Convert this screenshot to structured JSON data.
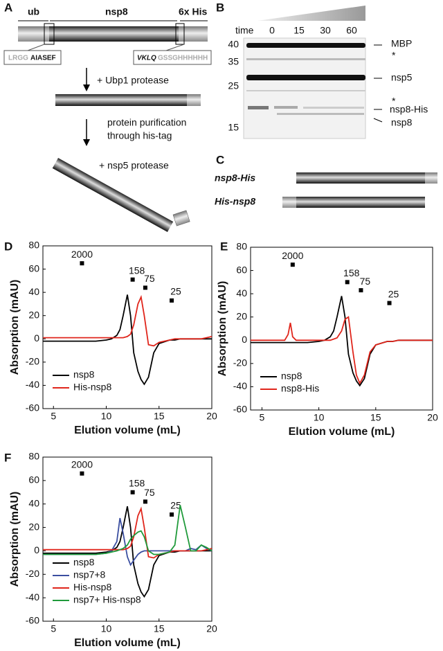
{
  "panel_labels": [
    "A",
    "B",
    "C",
    "D",
    "E",
    "F"
  ],
  "panel_a": {
    "ub": "ub",
    "nsp8": "nsp8",
    "his": "6x His",
    "left_seq": [
      "LRGG",
      "AIASEF"
    ],
    "right_seq": [
      "VKLQ",
      "GSSGHHHHHH"
    ],
    "step1": "+ Ubp1 protease",
    "step2": [
      "protein purification",
      "through his-tag"
    ],
    "step3": "+ nsp5 protease"
  },
  "panel_b": {
    "time_label": "time",
    "times": [
      0,
      15,
      30,
      60
    ],
    "mw": [
      40,
      35,
      25,
      15
    ],
    "bands": [
      "MBP",
      "*",
      "nsp5",
      "*",
      "nsp8-His",
      "nsp8"
    ]
  },
  "panel_c": {
    "constructs": [
      "nsp8-His",
      "His-nsp8"
    ]
  },
  "chart_data": [
    {
      "type": "line",
      "x_label": "Elution volume (mL)",
      "y_label": "Absorption (mAU)",
      "xlim": [
        4,
        20
      ],
      "ylim": [
        -60,
        80
      ],
      "xticks": [
        5,
        10,
        15,
        20
      ],
      "yticks": [
        -60,
        -40,
        -20,
        0,
        20,
        40,
        60,
        80
      ],
      "legend": "lower left",
      "x": [
        4,
        5,
        6,
        7,
        7.3,
        7.5,
        7.7,
        8,
        9,
        10,
        10.5,
        11,
        11.3,
        11.6,
        12,
        12.3,
        12.6,
        13,
        13.3,
        13.6,
        14,
        14.5,
        15,
        16,
        16.5,
        17,
        17.5,
        18,
        18.5,
        19,
        19.5,
        20
      ],
      "series": [
        {
          "name": "nsp8",
          "color": "#000000",
          "values": [
            -2,
            -2,
            -2,
            -2,
            -2,
            -2,
            -2,
            -2,
            -2,
            -1,
            0,
            3,
            8,
            20,
            38,
            20,
            -12,
            -28,
            -35,
            -39,
            -33,
            -12,
            -4,
            -1,
            -1,
            0,
            0,
            0,
            0,
            0,
            0,
            0
          ]
        },
        {
          "name": "His-nsp8",
          "color": "#e0251b",
          "values": [
            1,
            1,
            1,
            1,
            1,
            1,
            1,
            1,
            1,
            1,
            1,
            1,
            1,
            1,
            2,
            4,
            12,
            30,
            36,
            20,
            -5,
            -6,
            -3,
            -1,
            0,
            0,
            0,
            0,
            0,
            0,
            1,
            2
          ]
        }
      ],
      "standards": {
        "labels": [
          "2000",
          "158",
          "75",
          "25"
        ],
        "x": [
          7.7,
          12.5,
          13.7,
          16.2
        ],
        "y": [
          65,
          51,
          44,
          33
        ]
      }
    },
    {
      "type": "line",
      "x_label": "Elution volume (mL)",
      "y_label": "Absorption (mAU)",
      "xlim": [
        4,
        20
      ],
      "ylim": [
        -60,
        80
      ],
      "xticks": [
        5,
        10,
        15,
        20
      ],
      "yticks": [
        -60,
        -40,
        -20,
        0,
        20,
        40,
        60,
        80
      ],
      "legend": "lower left",
      "x": [
        4,
        5,
        6,
        7,
        7.3,
        7.5,
        7.7,
        8,
        9,
        10,
        10.5,
        11,
        11.3,
        11.6,
        12,
        12.3,
        12.6,
        13,
        13.3,
        13.6,
        14,
        14.5,
        15,
        16,
        16.5,
        17,
        17.5,
        18,
        18.5,
        19,
        19.5,
        20
      ],
      "series": [
        {
          "name": "nsp8",
          "color": "#000000",
          "values": [
            -2,
            -2,
            -2,
            -2,
            -2,
            -2,
            -2,
            -2,
            -2,
            -1,
            0,
            3,
            8,
            20,
            38,
            20,
            -12,
            -28,
            -35,
            -39,
            -33,
            -12,
            -4,
            -1,
            -1,
            0,
            0,
            0,
            0,
            0,
            0,
            0
          ]
        },
        {
          "name": "nsp8-His",
          "color": "#e0251b",
          "values": [
            0,
            0,
            0,
            0,
            5,
            15,
            3,
            0,
            0,
            0,
            0,
            0,
            1,
            2,
            8,
            18,
            20,
            -10,
            -30,
            -37,
            -30,
            -10,
            -4,
            -1,
            -1,
            0,
            0,
            0,
            0,
            0,
            0,
            0
          ]
        }
      ],
      "standards": {
        "labels": [
          "2000",
          "158",
          "75",
          "25"
        ],
        "x": [
          7.7,
          12.5,
          13.7,
          16.2
        ],
        "y": [
          65,
          50,
          43,
          32
        ]
      }
    },
    {
      "type": "line",
      "x_label": "Elution volume (mL)",
      "y_label": "Absorption (mAU)",
      "xlim": [
        4,
        20
      ],
      "ylim": [
        -60,
        80
      ],
      "xticks": [
        5,
        10,
        15,
        20
      ],
      "yticks": [
        -60,
        -40,
        -20,
        0,
        20,
        40,
        60,
        80
      ],
      "legend": "lower left",
      "x": [
        4,
        5,
        6,
        7,
        7.3,
        7.5,
        7.7,
        8,
        9,
        10,
        10.5,
        11,
        11.3,
        11.6,
        12,
        12.3,
        12.6,
        13,
        13.3,
        13.6,
        14,
        14.5,
        15,
        16,
        16.5,
        17,
        17.5,
        18,
        18.5,
        19,
        19.5,
        20
      ],
      "series": [
        {
          "name": "nsp8",
          "color": "#000000",
          "values": [
            -2,
            -2,
            -2,
            -2,
            -2,
            -2,
            -2,
            -2,
            -2,
            -1,
            0,
            3,
            8,
            20,
            38,
            20,
            -12,
            -28,
            -35,
            -39,
            -33,
            -12,
            -4,
            -1,
            -1,
            0,
            0,
            0,
            0,
            0,
            0,
            0
          ]
        },
        {
          "name": "nsp7+8",
          "color": "#3a4ea0",
          "values": [
            -3,
            -3,
            -3,
            -3,
            -3,
            -3,
            -3,
            -3,
            -3,
            -2,
            0,
            8,
            28,
            15,
            -5,
            -12,
            -8,
            -3,
            -1,
            0,
            0,
            0,
            0,
            0,
            0,
            0,
            0,
            2,
            1,
            5,
            2,
            0
          ]
        },
        {
          "name": "His-nsp8",
          "color": "#e0251b",
          "values": [
            1,
            1,
            1,
            1,
            1,
            1,
            1,
            1,
            1,
            1,
            1,
            1,
            1,
            1,
            2,
            4,
            12,
            30,
            36,
            20,
            -5,
            -6,
            -3,
            -1,
            0,
            0,
            0,
            0,
            0,
            0,
            1,
            2
          ]
        },
        {
          "name": "nsp7+ His-nsp8",
          "color": "#1f9a3a",
          "values": [
            -3,
            -3,
            -3,
            -3,
            -3,
            -3,
            -3,
            -3,
            -3,
            -2,
            -1,
            0,
            1,
            2,
            5,
            10,
            13,
            16,
            17,
            12,
            0,
            -3,
            -3,
            -1,
            5,
            39,
            20,
            0,
            0,
            5,
            3,
            0
          ]
        }
      ],
      "standards": {
        "labels": [
          "2000",
          "158",
          "75",
          "25"
        ],
        "x": [
          7.7,
          12.5,
          13.7,
          16.2
        ],
        "y": [
          66,
          50,
          42,
          31
        ]
      }
    }
  ]
}
